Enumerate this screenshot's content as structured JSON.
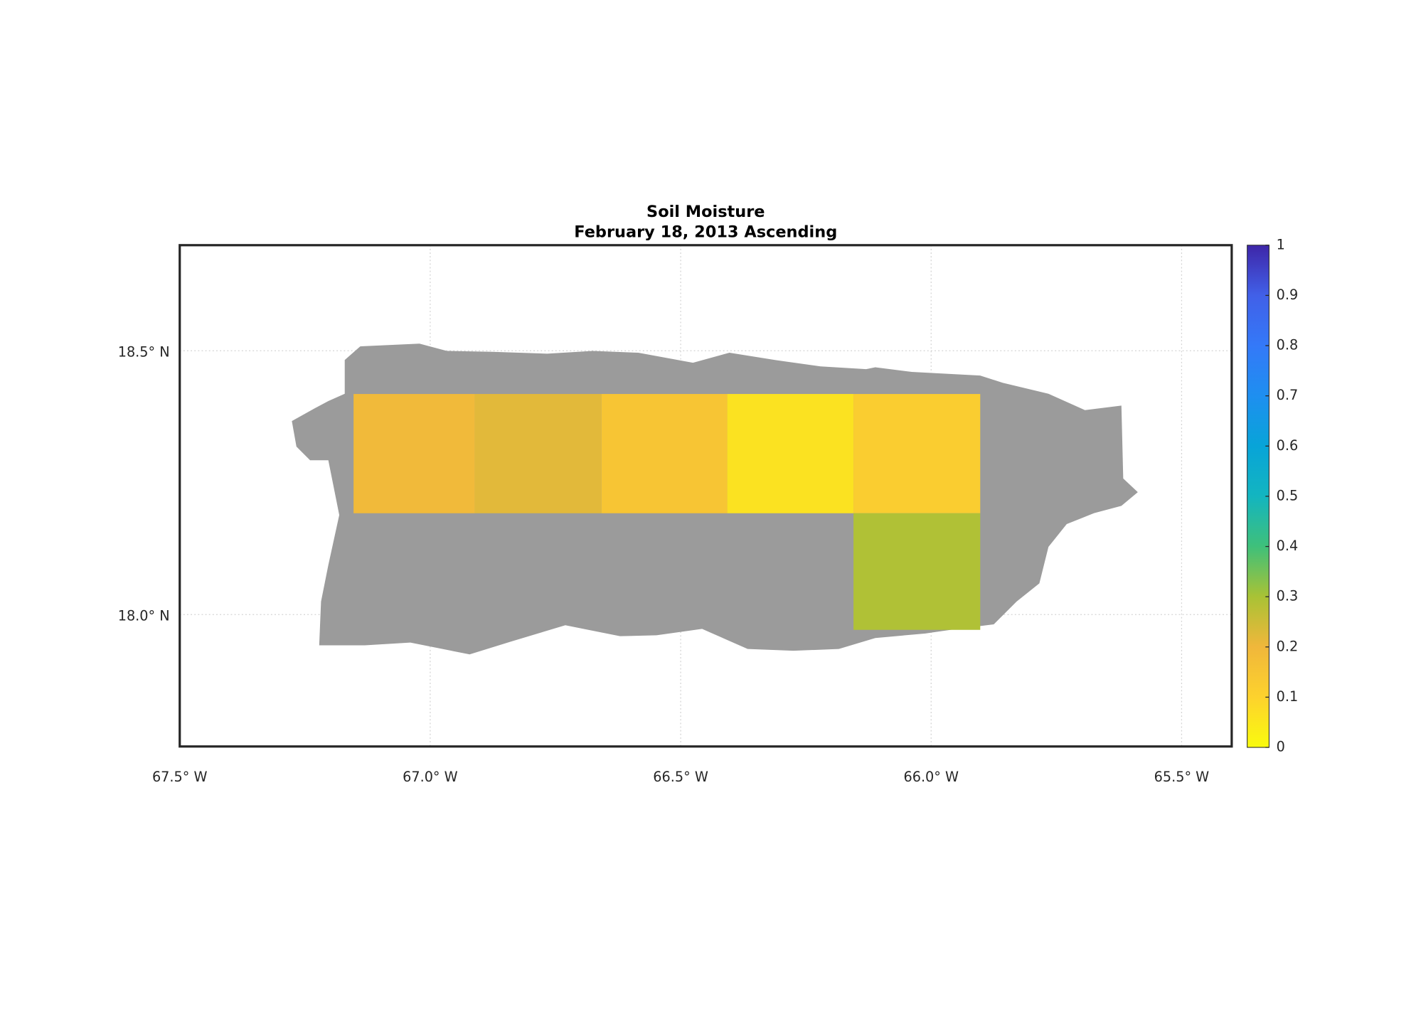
{
  "chart_data": {
    "type": "map",
    "title": "Soil Moisture",
    "subtitle": "February 18, 2013 Ascending",
    "xlim": [
      -67.5,
      -65.4
    ],
    "ylim": [
      17.75,
      18.7
    ],
    "xticks": [
      {
        "value": -67.5,
        "label": "67.5° W"
      },
      {
        "value": -67.0,
        "label": "67.0° W"
      },
      {
        "value": -66.5,
        "label": "66.5° W"
      },
      {
        "value": -66.0,
        "label": "66.0° W"
      },
      {
        "value": -65.5,
        "label": "65.5° W"
      }
    ],
    "yticks": [
      {
        "value": 18.0,
        "label": "18.0° N"
      },
      {
        "value": 18.5,
        "label": "18.5° N"
      }
    ],
    "grid": true,
    "land_color": "#9b9b9b",
    "cells": [
      {
        "lon": [
          -67.153,
          -66.911
        ],
        "lat": [
          18.192,
          18.418
        ],
        "value": 0.19
      },
      {
        "lon": [
          -66.911,
          -66.658
        ],
        "lat": [
          18.192,
          18.418
        ],
        "value": 0.22
      },
      {
        "lon": [
          -66.658,
          -66.407
        ],
        "lat": [
          18.192,
          18.418
        ],
        "value": 0.15
      },
      {
        "lon": [
          -66.407,
          -66.155
        ],
        "lat": [
          18.192,
          18.418
        ],
        "value": 0.06
      },
      {
        "lon": [
          -66.155,
          -65.902
        ],
        "lat": [
          18.192,
          18.418
        ],
        "value": 0.12
      },
      {
        "lon": [
          -66.155,
          -65.902
        ],
        "lat": [
          17.971,
          18.192
        ],
        "value": 0.29
      }
    ],
    "colorbar": {
      "lim": [
        0,
        1
      ],
      "ticks": [
        0,
        0.1,
        0.2,
        0.3,
        0.4,
        0.5,
        0.6,
        0.7,
        0.8,
        0.9,
        1
      ],
      "colormap": [
        "#f9fb0e",
        "#fdd22d",
        "#f0b73b",
        "#a9c235",
        "#3fc07a",
        "#13b5c0",
        "#08a4d8",
        "#1e8ff0",
        "#3479f8",
        "#4160e8",
        "#3e26a8"
      ]
    }
  }
}
